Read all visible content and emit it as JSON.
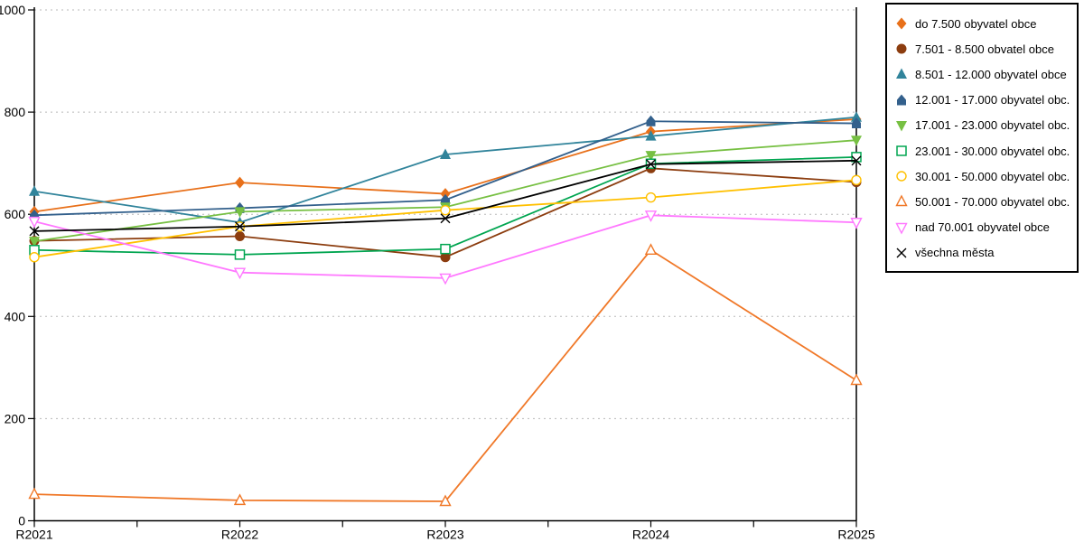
{
  "chart_data": {
    "type": "line",
    "title": "",
    "xlabel": "",
    "ylabel": "",
    "categories": [
      "R2021",
      "R2022",
      "R2023",
      "R2024",
      "R2025"
    ],
    "ytick_labels": [
      "0",
      "200",
      "400",
      "600",
      "800",
      "1000"
    ],
    "yticks": [
      0,
      200,
      400,
      600,
      800,
      1000
    ],
    "ylim": [
      0,
      1000
    ],
    "grid": "horizontal-dashed",
    "legend_position": "right",
    "series": [
      {
        "name": "do 7.500 obyvatel obce",
        "marker": "diamond-filled",
        "color": "#E8701A",
        "values": [
          605,
          662,
          640,
          762,
          786
        ]
      },
      {
        "name": "7.501 - 8.500 obvatel obce",
        "marker": "circle-filled",
        "color": "#8C3D0F",
        "values": [
          548,
          557,
          516,
          690,
          663
        ]
      },
      {
        "name": "8.501 - 12.000 obyvatel obce",
        "marker": "triangle-up-filled",
        "color": "#31849B",
        "values": [
          645,
          584,
          717,
          753,
          790
        ]
      },
      {
        "name": "12.001 - 17.000 obyvatel obc...",
        "marker": "pentagon-filled",
        "color": "#33608C",
        "values": [
          598,
          612,
          628,
          782,
          778
        ]
      },
      {
        "name": "17.001 - 23.000 obyvatel obc...",
        "marker": "triangle-down-filled",
        "color": "#77C043",
        "values": [
          547,
          605,
          614,
          715,
          745
        ]
      },
      {
        "name": "23.001 - 30.000 obyvatel obc...",
        "marker": "square-open",
        "color": "#00A550",
        "values": [
          530,
          521,
          532,
          699,
          712
        ]
      },
      {
        "name": "30.001 - 50.000 obyvatel obc...",
        "marker": "circle-open",
        "color": "#FFC000",
        "values": [
          516,
          576,
          608,
          633,
          667
        ]
      },
      {
        "name": "50.001 - 70.000 obyvatel obc...",
        "marker": "triangle-up-open",
        "color": "#F07828",
        "values": [
          52,
          40,
          38,
          530,
          275
        ]
      },
      {
        "name": "nad 70.001 obyvatel obce",
        "marker": "triangle-down-open",
        "color": "#FF78FF",
        "values": [
          586,
          486,
          475,
          598,
          584
        ]
      },
      {
        "name": "všechna města",
        "marker": "x-cross",
        "color": "#000000",
        "values": [
          567,
          576,
          592,
          698,
          705
        ]
      }
    ],
    "colors": {
      "axis": "#000000",
      "gridline": "#b8b8b8",
      "background": "#ffffff"
    }
  }
}
